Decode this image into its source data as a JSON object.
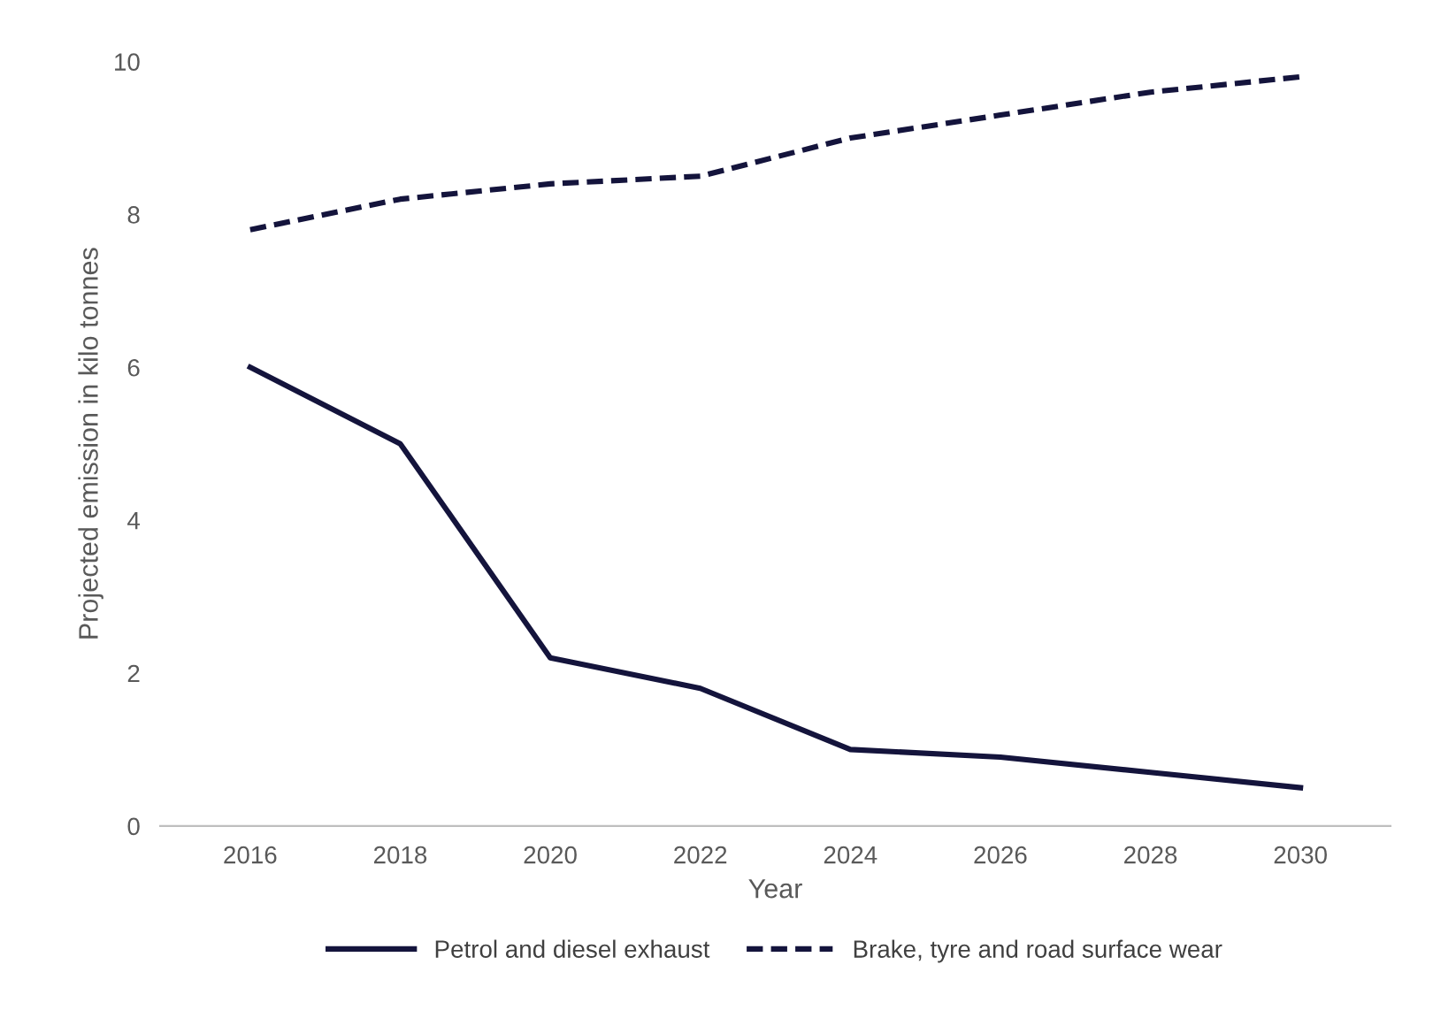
{
  "chart_data": {
    "type": "line",
    "xlabel": "Year",
    "ylabel": "Projected emission in kilo tonnes",
    "categories": [
      "2016",
      "2018",
      "2020",
      "2022",
      "2024",
      "2026",
      "2028",
      "2030"
    ],
    "series": [
      {
        "name": "Petrol and diesel exhaust",
        "color": "#14143c",
        "line_style": "solid",
        "values": [
          6.0,
          5.0,
          2.2,
          1.8,
          1.0,
          0.9,
          0.7,
          0.5
        ]
      },
      {
        "name": "Brake, tyre and road surface wear",
        "color": "#14143c",
        "line_style": "dashed",
        "values": [
          7.8,
          8.2,
          8.4,
          8.5,
          9.0,
          9.3,
          9.6,
          9.8
        ]
      }
    ],
    "ylim": [
      0,
      10
    ],
    "yticks": [
      0,
      2,
      4,
      6,
      8,
      10
    ],
    "grid": false,
    "legend": "bottom",
    "marker": "none"
  }
}
